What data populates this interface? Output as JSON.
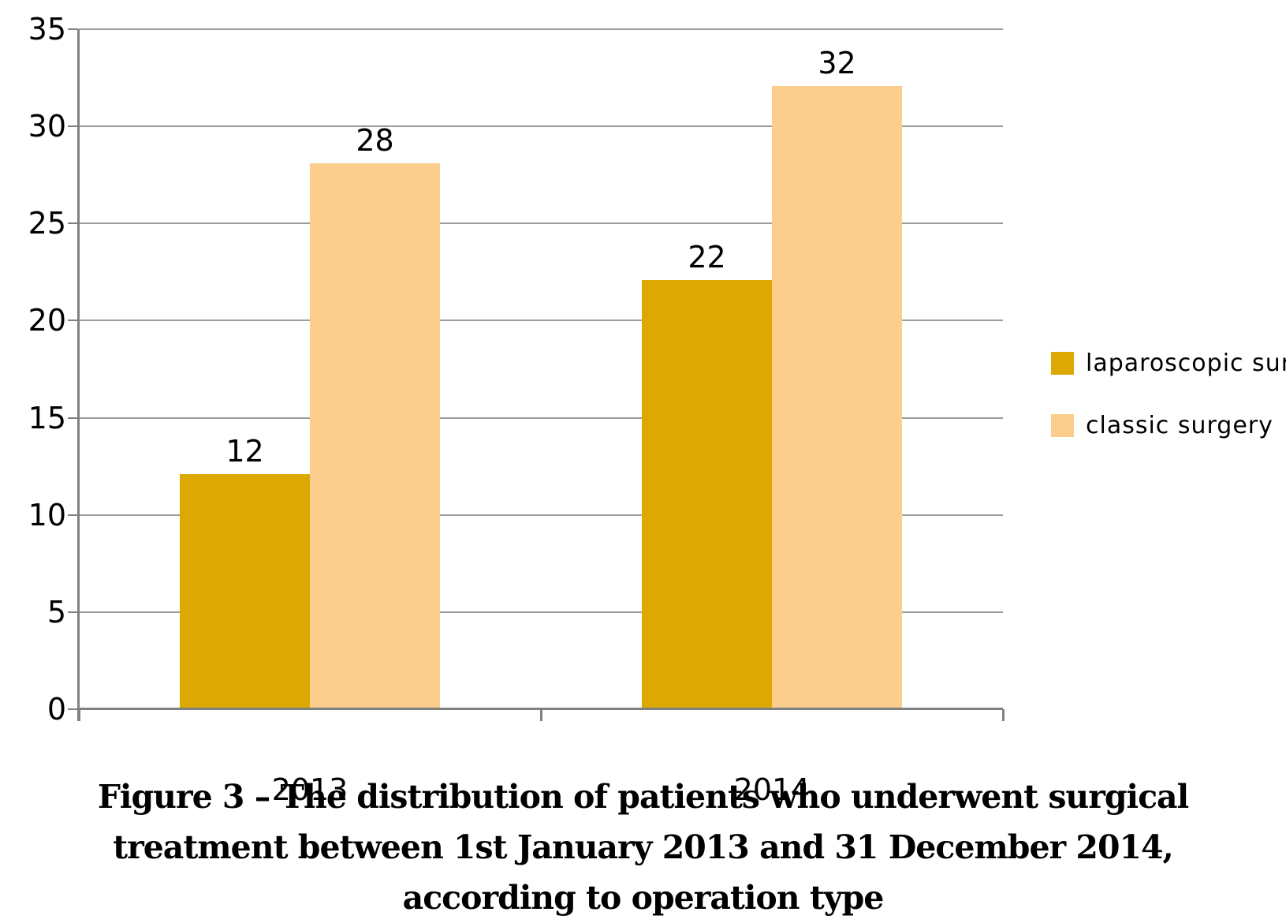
{
  "chart_data": {
    "type": "bar",
    "categories": [
      "2013",
      "2014"
    ],
    "series": [
      {
        "name": "laparoscopic surgery",
        "values": [
          12,
          22
        ],
        "color": "#DEA802"
      },
      {
        "name": "classic surgery",
        "values": [
          28,
          32
        ],
        "color": "#FCCE8D"
      }
    ],
    "data_labels": [
      [
        12,
        22
      ],
      [
        28,
        32
      ]
    ],
    "title": "",
    "xlabel": "",
    "ylabel": "",
    "ylim": [
      0,
      35
    ],
    "yticks": [
      0,
      5,
      10,
      15,
      20,
      25,
      30,
      35
    ],
    "grid": true,
    "legend_position": "right",
    "gridline_color": "#9C9C9C",
    "axis_color": "#808080"
  },
  "legend": {
    "items": [
      {
        "label": "laparoscopic surgery",
        "color": "#DEA802"
      },
      {
        "label": "classic surgery",
        "color": "#FCCE8D"
      }
    ]
  },
  "caption": {
    "line1": "Figure 3 – The distribution of patients who underwent surgical",
    "line2": "treatment between 1st January 2013 and 31 December 2014,",
    "line3": "according to operation type"
  }
}
